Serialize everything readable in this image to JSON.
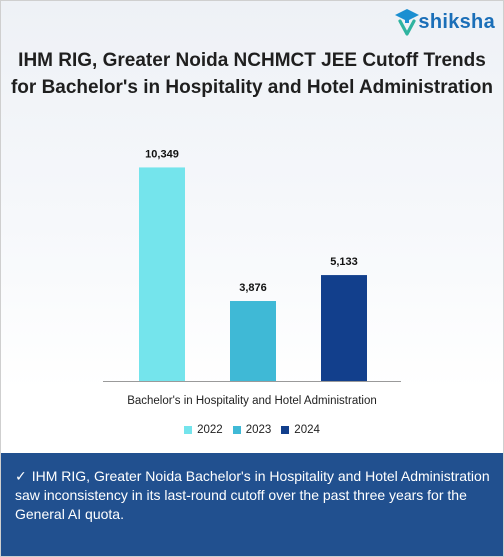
{
  "brand": {
    "name": "shiksha"
  },
  "title": {
    "line1": "IHM RIG, Greater Noida NCHMCT JEE Cutoff Trends",
    "line2": "for Bachelor's in Hospitality and Hotel Administration"
  },
  "chart_data": {
    "type": "bar",
    "categories": [
      "Bachelor's in Hospitality and Hotel Administration"
    ],
    "series": [
      {
        "name": "2022",
        "values": [
          10349
        ],
        "color": "#74e4ec"
      },
      {
        "name": "2023",
        "values": [
          3876
        ],
        "color": "#3fb9d6"
      },
      {
        "name": "2024",
        "values": [
          5133
        ],
        "color": "#123f8c"
      }
    ],
    "data_labels": [
      "10,349",
      "3,876",
      "5,133"
    ],
    "ylim": [
      0,
      11000
    ],
    "grid": false,
    "legend": "bottom",
    "xlabel": "",
    "ylabel": ""
  },
  "note": {
    "check": "✓",
    "text": "IHM RIG, Greater Noida Bachelor's in Hospitality and Hotel Administration saw inconsistency in its last-round cutoff over the past three years for the General AI quota."
  }
}
